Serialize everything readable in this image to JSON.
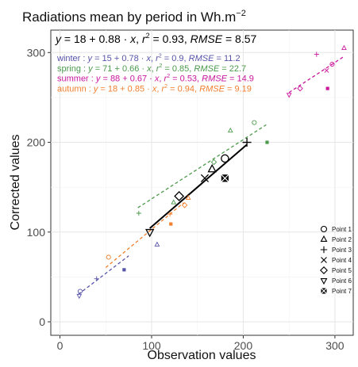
{
  "chart_data": {
    "type": "scatter",
    "title_text": "Radiations mean by period in Wh.m",
    "title_sup": "−2",
    "xlabel": "Observation values",
    "ylabel": "Corrected values",
    "xlim": [
      -10,
      320
    ],
    "ylim": [
      -15,
      325
    ],
    "x_ticks": [
      0,
      100,
      200,
      300
    ],
    "y_ticks": [
      0,
      100,
      200,
      300
    ],
    "grid": true,
    "equation_overall": {
      "color": "#000000",
      "parts": [
        {
          "t": "y",
          "i": true
        },
        {
          "t": " = 18 + 0.88 · "
        },
        {
          "t": "x",
          "i": true
        },
        {
          "t": ",  "
        },
        {
          "t": "r",
          "i": true
        },
        {
          "t": "2",
          "sup": true
        },
        {
          "t": " = 0.93,  "
        },
        {
          "t": "RMSE",
          "i": true
        },
        {
          "t": " = 8.57"
        }
      ]
    },
    "seasons": [
      {
        "color": "#5654a8",
        "parts": [
          {
            "t": "winter : "
          },
          {
            "t": "y",
            "i": true
          },
          {
            "t": " = 15 + 0.78 · "
          },
          {
            "t": "x",
            "i": true
          },
          {
            "t": ",  "
          },
          {
            "t": "r",
            "i": true
          },
          {
            "t": "2",
            "sup": true
          },
          {
            "t": " = 0.9,  "
          },
          {
            "t": "RMSE",
            "i": true
          },
          {
            "t": " = 11.2"
          }
        ],
        "line": {
          "x": [
            20,
            75
          ]
        },
        "intercept": 15,
        "slope": 0.78
      },
      {
        "color": "#4b9a4b",
        "parts": [
          {
            "t": "spring : "
          },
          {
            "t": "y",
            "i": true
          },
          {
            "t": " = 71 + 0.66 · "
          },
          {
            "t": "x",
            "i": true
          },
          {
            "t": ",  "
          },
          {
            "t": "r",
            "i": true
          },
          {
            "t": "2",
            "sup": true
          },
          {
            "t": " = 0.85,  "
          },
          {
            "t": "RMSE",
            "i": true
          },
          {
            "t": " = 22.7"
          }
        ],
        "line": {
          "x": [
            85,
            225
          ]
        },
        "intercept": 71,
        "slope": 0.66
      },
      {
        "color": "#c9169b",
        "parts": [
          {
            "t": "summer : "
          },
          {
            "t": "y",
            "i": true
          },
          {
            "t": " = 88 + 0.67 · "
          },
          {
            "t": "x",
            "i": true
          },
          {
            "t": ",  "
          },
          {
            "t": "r",
            "i": true
          },
          {
            "t": "2",
            "sup": true
          },
          {
            "t": " = 0.53,  "
          },
          {
            "t": "RMSE",
            "i": true
          },
          {
            "t": " = 14.9"
          }
        ],
        "line": {
          "x": [
            250,
            310
          ]
        },
        "intercept": 88,
        "slope": 0.67
      },
      {
        "color": "#f07f2e",
        "parts": [
          {
            "t": "autumn : "
          },
          {
            "t": "y",
            "i": true
          },
          {
            "t": " = 18 + 0.85 · "
          },
          {
            "t": "x",
            "i": true
          },
          {
            "t": ",  "
          },
          {
            "t": "r",
            "i": true
          },
          {
            "t": "2",
            "sup": true
          },
          {
            "t": " = 0.94,  "
          },
          {
            "t": "RMSE",
            "i": true
          },
          {
            "t": " = 9.19"
          }
        ],
        "line": {
          "x": [
            50,
            135
          ]
        },
        "intercept": 18,
        "slope": 0.85
      }
    ],
    "overall_points": [
      {
        "name": "Point 1",
        "shape": "circle",
        "x": 180,
        "y": 182
      },
      {
        "name": "Point 2",
        "shape": "triangle-up",
        "x": 166,
        "y": 170
      },
      {
        "name": "Point 3",
        "shape": "plus",
        "x": 204,
        "y": 200
      },
      {
        "name": "Point 4",
        "shape": "cross",
        "x": 158,
        "y": 160
      },
      {
        "name": "Point 5",
        "shape": "diamond",
        "x": 130,
        "y": 140
      },
      {
        "name": "Point 6",
        "shape": "triangle-down",
        "x": 98,
        "y": 100
      },
      {
        "name": "Point 7",
        "shape": "square-x",
        "x": 180,
        "y": 160
      }
    ],
    "overall_line": {
      "x": [
        98,
        204
      ],
      "intercept": 18,
      "slope": 0.88,
      "color": "#000000"
    },
    "season_points": [
      {
        "season": 0,
        "shape": "triangle-down",
        "x": 21,
        "y": 29
      },
      {
        "season": 0,
        "shape": "circle",
        "x": 22,
        "y": 34
      },
      {
        "season": 0,
        "shape": "plus",
        "x": 40,
        "y": 48
      },
      {
        "season": 0,
        "shape": "square",
        "x": 70,
        "y": 58
      },
      {
        "season": 0,
        "shape": "triangle-up",
        "x": 106,
        "y": 86
      },
      {
        "season": 1,
        "shape": "plus",
        "x": 86,
        "y": 121
      },
      {
        "season": 1,
        "shape": "triangle-up",
        "x": 124,
        "y": 133
      },
      {
        "season": 1,
        "shape": "diamond",
        "x": 168,
        "y": 178
      },
      {
        "season": 1,
        "shape": "triangle-up",
        "x": 186,
        "y": 213
      },
      {
        "season": 1,
        "shape": "circle",
        "x": 212,
        "y": 222
      },
      {
        "season": 1,
        "shape": "square",
        "x": 226,
        "y": 200
      },
      {
        "season": 2,
        "shape": "triangle-down",
        "x": 250,
        "y": 253
      },
      {
        "season": 2,
        "shape": "diamond",
        "x": 262,
        "y": 260
      },
      {
        "season": 2,
        "shape": "plus",
        "x": 280,
        "y": 298
      },
      {
        "season": 2,
        "shape": "cross",
        "x": 291,
        "y": 280
      },
      {
        "season": 2,
        "shape": "circle",
        "x": 297,
        "y": 287
      },
      {
        "season": 2,
        "shape": "square",
        "x": 292,
        "y": 260
      },
      {
        "season": 2,
        "shape": "triangle-up",
        "x": 310,
        "y": 305
      },
      {
        "season": 3,
        "shape": "circle",
        "x": 53,
        "y": 72
      },
      {
        "season": 3,
        "shape": "plus",
        "x": 120,
        "y": 120
      },
      {
        "season": 3,
        "shape": "square",
        "x": 121,
        "y": 109
      },
      {
        "season": 3,
        "shape": "triangle-up",
        "x": 140,
        "y": 138
      },
      {
        "season": 3,
        "shape": "diamond",
        "x": 136,
        "y": 130
      }
    ],
    "legend": {
      "position": "bottom-right"
    }
  }
}
